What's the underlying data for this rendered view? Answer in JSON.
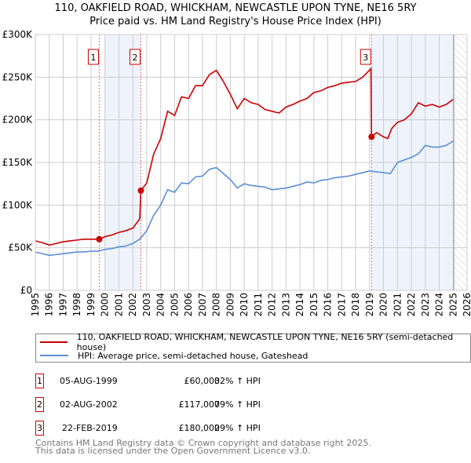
{
  "title_line1": "110, OAKFIELD ROAD, WHICKHAM, NEWCASTLE UPON TYNE, NE16 5RY",
  "title_line2": "Price paid vs. HM Land Registry's House Price Index (HPI)",
  "chart_data": {
    "type": "line",
    "title": "Price paid vs. HM Land Registry's House Price Index (HPI)",
    "xlim": [
      1995,
      2026
    ],
    "ylim": [
      0,
      300000
    ],
    "x_ticks": [
      "1995",
      "1996",
      "1997",
      "1998",
      "1999",
      "2000",
      "2001",
      "2002",
      "2003",
      "2004",
      "2005",
      "2006",
      "2007",
      "2008",
      "2009",
      "2010",
      "2011",
      "2012",
      "2013",
      "2014",
      "2015",
      "2016",
      "2017",
      "2018",
      "2019",
      "2020",
      "2021",
      "2022",
      "2023",
      "2024",
      "2025",
      "2026"
    ],
    "y_ticks": [
      {
        "v": 0,
        "label": "£0"
      },
      {
        "v": 50000,
        "label": "£50K"
      },
      {
        "v": 100000,
        "label": "£100K"
      },
      {
        "v": 150000,
        "label": "£150K"
      },
      {
        "v": 200000,
        "label": "£200K"
      },
      {
        "v": 250000,
        "label": "£250K"
      },
      {
        "v": 300000,
        "label": "£300K"
      }
    ],
    "grid": true,
    "shaded_ranges": [
      [
        2000,
        2002.58
      ],
      [
        2019.14,
        2025.05
      ]
    ],
    "future_hatch": [
      2025.05,
      2026
    ],
    "colors": {
      "property": "#cc0000",
      "hpi": "#5b8fd6",
      "shade": "#eef3fc"
    },
    "series": [
      {
        "name": "110, OAKFIELD ROAD, WHICKHAM, NEWCASTLE UPON TYNE, NE16 5RY (semi-detached house)",
        "x": [
          1995,
          1995.5,
          1996,
          1996.5,
          1997,
          1997.5,
          1998,
          1998.5,
          1999,
          1999.59,
          2000,
          2000.5,
          2001,
          2001.5,
          2002,
          2002.5,
          2002.58,
          2003,
          2003.5,
          2004,
          2004.5,
          2005,
          2005.5,
          2006,
          2006.5,
          2007,
          2007.5,
          2008,
          2008.5,
          2009,
          2009.5,
          2010,
          2010.5,
          2011,
          2011.5,
          2012,
          2012.5,
          2013,
          2013.5,
          2014,
          2014.5,
          2015,
          2015.5,
          2016,
          2016.5,
          2017,
          2017.5,
          2018,
          2018.5,
          2019.1,
          2019.14,
          2019.5,
          2020,
          2020.3,
          2020.6,
          2021,
          2021.5,
          2022,
          2022.5,
          2023,
          2023.5,
          2024,
          2024.5,
          2025
        ],
        "y": [
          58000,
          56000,
          53000,
          55000,
          57000,
          58000,
          59000,
          60000,
          60000,
          60000,
          63000,
          65000,
          68000,
          70000,
          73000,
          84000,
          117000,
          126000,
          160000,
          178000,
          210000,
          205000,
          227000,
          225000,
          240000,
          240000,
          253000,
          258000,
          245000,
          230000,
          213000,
          225000,
          220000,
          218000,
          212000,
          210000,
          208000,
          215000,
          218000,
          222000,
          225000,
          232000,
          234000,
          238000,
          240000,
          243000,
          244000,
          245000,
          250000,
          260000,
          180000,
          185000,
          180000,
          178000,
          190000,
          197000,
          200000,
          207000,
          220000,
          216000,
          218000,
          215000,
          218000,
          224000
        ]
      },
      {
        "name": "HPI: Average price, semi-detached house, Gateshead",
        "x": [
          1995,
          1995.5,
          1996,
          1996.5,
          1997,
          1997.5,
          1998,
          1998.5,
          1999,
          1999.5,
          2000,
          2000.5,
          2001,
          2001.5,
          2002,
          2002.5,
          2003,
          2003.5,
          2004,
          2004.5,
          2005,
          2005.5,
          2006,
          2006.5,
          2007,
          2007.5,
          2008,
          2008.5,
          2009,
          2009.5,
          2010,
          2010.5,
          2011,
          2011.5,
          2012,
          2012.5,
          2013,
          2013.5,
          2014,
          2014.5,
          2015,
          2015.5,
          2016,
          2016.5,
          2017,
          2017.5,
          2018,
          2018.5,
          2019,
          2019.5,
          2020,
          2020.5,
          2021,
          2021.5,
          2022,
          2022.5,
          2023,
          2023.5,
          2024,
          2024.5,
          2025
        ],
        "y": [
          45000,
          43000,
          41000,
          42000,
          43000,
          44000,
          45000,
          45000,
          46000,
          46000,
          48000,
          49000,
          51000,
          52000,
          55000,
          60000,
          70000,
          88000,
          100000,
          118000,
          115000,
          126000,
          125000,
          133000,
          134000,
          142000,
          144000,
          137000,
          130000,
          120000,
          125000,
          123000,
          122000,
          121000,
          118000,
          119000,
          120000,
          122000,
          124000,
          127000,
          126000,
          129000,
          130000,
          132000,
          133000,
          134000,
          136000,
          138000,
          140000,
          139000,
          138000,
          137000,
          150000,
          153000,
          156000,
          160000,
          170000,
          168000,
          168000,
          170000,
          175000
        ]
      }
    ],
    "sales": [
      {
        "label": "1",
        "x": 1999.59,
        "y": 60000
      },
      {
        "label": "2",
        "x": 2002.58,
        "y": 117000
      },
      {
        "label": "3",
        "x": 2019.14,
        "y": 180000
      }
    ]
  },
  "legend": {
    "property": "110, OAKFIELD ROAD, WHICKHAM, NEWCASTLE UPON TYNE, NE16 5RY (semi-detached house)",
    "hpi": "HPI: Average price, semi-detached house, Gateshead"
  },
  "transactions": [
    {
      "num": "1",
      "date": "05-AUG-1999",
      "price": "£60,000",
      "hpi": "32% ↑ HPI"
    },
    {
      "num": "2",
      "date": "02-AUG-2002",
      "price": "£117,000",
      "hpi": "79% ↑ HPI"
    },
    {
      "num": "3",
      "date": "22-FEB-2019",
      "price": "£180,000",
      "hpi": "29% ↑ HPI"
    }
  ],
  "footer_line1": "Contains HM Land Registry data © Crown copyright and database right 2025.",
  "footer_line2": "This data is licensed under the Open Government Licence v3.0."
}
